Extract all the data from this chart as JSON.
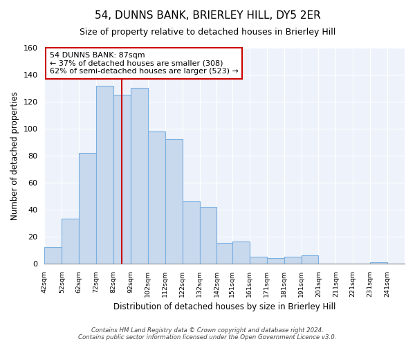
{
  "title": "54, DUNNS BANK, BRIERLEY HILL, DY5 2ER",
  "subtitle": "Size of property relative to detached houses in Brierley Hill",
  "xlabel": "Distribution of detached houses by size in Brierley Hill",
  "ylabel": "Number of detached properties",
  "footer_line1": "Contains HM Land Registry data © Crown copyright and database right 2024.",
  "footer_line2": "Contains public sector information licensed under the Open Government Licence v3.0.",
  "annotation_title": "54 DUNNS BANK: 87sqm",
  "annotation_line1": "← 37% of detached houses are smaller (308)",
  "annotation_line2": "62% of semi-detached houses are larger (523) →",
  "bar_color": "#c8d9ee",
  "bar_edge_color": "#7aafe0",
  "plot_bg_color": "#eef3fb",
  "vline_color": "#cc0000",
  "vline_x": 87,
  "annotation_box_color": "#ffffff",
  "annotation_box_edge": "#cc0000",
  "bin_edges": [
    42,
    52,
    62,
    72,
    82,
    92,
    102,
    112,
    122,
    132,
    142,
    151,
    161,
    171,
    181,
    191,
    201,
    211,
    221,
    231,
    241,
    251
  ],
  "counts": [
    12,
    33,
    82,
    132,
    125,
    130,
    98,
    92,
    46,
    42,
    15,
    16,
    5,
    4,
    5,
    6,
    0,
    0,
    0,
    1,
    0
  ],
  "ylim": [
    0,
    160
  ],
  "yticks": [
    0,
    20,
    40,
    60,
    80,
    100,
    120,
    140,
    160
  ],
  "tick_labels": [
    "42sqm",
    "52sqm",
    "62sqm",
    "72sqm",
    "82sqm",
    "92sqm",
    "102sqm",
    "112sqm",
    "122sqm",
    "132sqm",
    "142sqm",
    "151sqm",
    "161sqm",
    "171sqm",
    "181sqm",
    "191sqm",
    "201sqm",
    "211sqm",
    "221sqm",
    "231sqm",
    "241sqm"
  ]
}
